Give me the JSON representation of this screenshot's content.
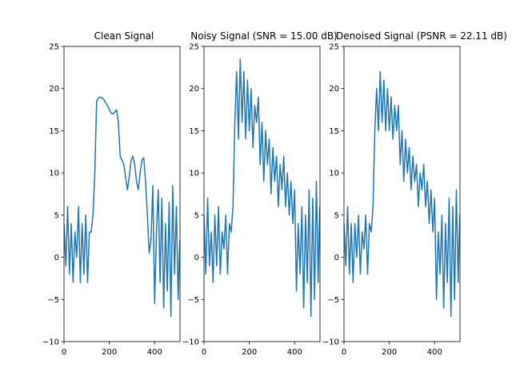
{
  "chart_data": [
    {
      "type": "line",
      "title": "Clean Signal",
      "xlim": [
        0,
        512
      ],
      "ylim": [
        -10,
        25
      ],
      "xticks": [
        0,
        200,
        400
      ],
      "yticks": [
        -10,
        -5,
        0,
        5,
        10,
        15,
        20,
        25
      ],
      "series": [
        {
          "color": "#1f77b4",
          "x": [
            0,
            8,
            16,
            24,
            32,
            40,
            48,
            56,
            64,
            72,
            80,
            88,
            96,
            104,
            112,
            120,
            128,
            136,
            144,
            152,
            160,
            168,
            176,
            184,
            192,
            200,
            208,
            216,
            224,
            232,
            240,
            248,
            256,
            264,
            272,
            280,
            288,
            296,
            304,
            312,
            320,
            328,
            336,
            344,
            352,
            360,
            368,
            376,
            384,
            392,
            400,
            408,
            416,
            424,
            432,
            440,
            448,
            456,
            464,
            472,
            480,
            488,
            496,
            504,
            511
          ],
          "y": [
            4,
            -1,
            6,
            -2,
            4,
            -3,
            3,
            0,
            6,
            -3,
            4,
            -2,
            5,
            -3,
            3,
            3,
            5,
            10,
            18.5,
            18.9,
            19,
            18.9,
            18.7,
            18.3,
            18,
            17.5,
            17.1,
            17,
            17.2,
            17.5,
            16,
            12,
            11.5,
            11,
            9.5,
            8,
            9.5,
            11.5,
            12,
            11,
            9,
            8,
            10,
            11.5,
            11.8,
            9,
            5,
            0.5,
            2,
            8.5,
            -5.5,
            3,
            8,
            -3,
            7,
            -6,
            4,
            -4,
            6.5,
            -7,
            8.5,
            -2,
            6,
            -5,
            2
          ]
        }
      ]
    },
    {
      "type": "line",
      "title": "Noisy Signal (SNR = 15.00 dB)",
      "xlim": [
        0,
        512
      ],
      "ylim": [
        -10,
        25
      ],
      "xticks": [
        0,
        200,
        400
      ],
      "yticks": [
        -10,
        -5,
        0,
        5,
        10,
        15,
        20,
        25
      ],
      "series": [
        {
          "color": "#1f77b4",
          "x": [
            0,
            8,
            16,
            24,
            32,
            40,
            48,
            56,
            64,
            72,
            80,
            88,
            96,
            104,
            112,
            120,
            128,
            136,
            144,
            152,
            160,
            168,
            176,
            184,
            192,
            200,
            208,
            216,
            224,
            232,
            240,
            248,
            256,
            264,
            272,
            280,
            288,
            296,
            304,
            312,
            320,
            328,
            336,
            344,
            352,
            360,
            368,
            376,
            384,
            392,
            400,
            408,
            416,
            424,
            432,
            440,
            448,
            456,
            464,
            472,
            480,
            488,
            496,
            504,
            511
          ],
          "y": [
            5,
            -2,
            7,
            -1,
            3,
            -3,
            5,
            -1,
            6,
            -2,
            3,
            1,
            5,
            -2,
            4,
            3,
            6,
            16,
            22,
            14,
            23.5,
            16,
            22,
            14,
            21,
            15,
            20,
            13,
            18,
            16,
            19,
            11,
            16,
            9,
            15,
            11,
            14,
            7.5,
            13,
            9,
            12,
            6,
            11,
            8,
            12,
            6,
            10,
            5,
            9,
            4,
            8,
            -4,
            4,
            -2,
            6,
            -6,
            5,
            -3,
            8,
            -7,
            7,
            -5,
            9,
            -3,
            6
          ]
        }
      ]
    },
    {
      "type": "line",
      "title": "Denoised Signal (PSNR = 22.11 dB)",
      "xlim": [
        0,
        512
      ],
      "ylim": [
        -10,
        25
      ],
      "xticks": [
        0,
        200,
        400
      ],
      "yticks": [
        -10,
        -5,
        0,
        5,
        10,
        15,
        20,
        25
      ],
      "series": [
        {
          "color": "#1f77b4",
          "x": [
            0,
            8,
            16,
            24,
            32,
            40,
            48,
            56,
            64,
            72,
            80,
            88,
            96,
            104,
            112,
            120,
            128,
            136,
            144,
            152,
            160,
            168,
            176,
            184,
            192,
            200,
            208,
            216,
            224,
            232,
            240,
            248,
            256,
            264,
            272,
            280,
            288,
            296,
            304,
            312,
            320,
            328,
            336,
            344,
            352,
            360,
            368,
            376,
            384,
            392,
            400,
            408,
            416,
            424,
            432,
            440,
            448,
            456,
            464,
            472,
            480,
            488,
            496,
            504,
            511
          ],
          "y": [
            4,
            -1,
            6,
            -2,
            4,
            -3,
            4,
            0,
            5,
            -2,
            3,
            1,
            5,
            -2,
            4,
            3,
            6,
            15,
            20,
            15,
            22,
            16,
            21,
            15,
            20,
            15,
            19,
            14,
            18,
            15,
            18,
            11,
            15,
            9,
            14,
            10,
            13,
            8,
            12,
            9,
            11,
            6,
            10,
            8,
            11,
            6,
            9,
            4,
            8,
            3,
            7,
            -5,
            3,
            -2,
            5,
            -6,
            4,
            -3,
            7,
            -7,
            6,
            -5,
            8,
            -3,
            5
          ]
        }
      ]
    }
  ]
}
